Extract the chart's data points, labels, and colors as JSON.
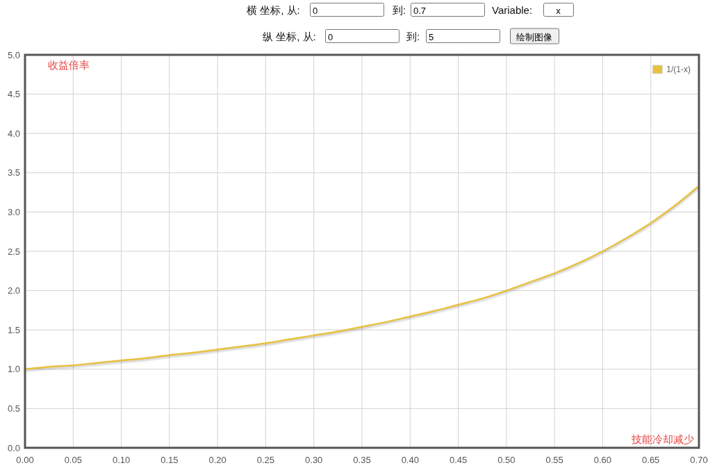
{
  "chart_data": {
    "type": "line",
    "xlabel": "技能冷却减少",
    "ylabel": "收益倍率",
    "annotations": [
      "横 坐标, 从:",
      "0",
      "到:",
      "0.7",
      "Variable:",
      "x",
      "纵 坐标, 从:",
      "0",
      "到:",
      "5",
      "绘制图像"
    ],
    "x": [
      0,
      0.025,
      0.05,
      0.075,
      0.1,
      0.125,
      0.15,
      0.175,
      0.2,
      0.225,
      0.25,
      0.275,
      0.3,
      0.325,
      0.35,
      0.375,
      0.4,
      0.425,
      0.45,
      0.475,
      0.5,
      0.525,
      0.55,
      0.575,
      0.6,
      0.625,
      0.65,
      0.675,
      0.7
    ],
    "series": [
      {
        "name": "1/(1-x)",
        "color": "#e8c13d",
        "values": [
          1.0,
          1.03,
          1.05,
          1.08,
          1.11,
          1.14,
          1.18,
          1.21,
          1.25,
          1.29,
          1.33,
          1.38,
          1.43,
          1.48,
          1.54,
          1.6,
          1.67,
          1.74,
          1.82,
          1.9,
          2.0,
          2.11,
          2.22,
          2.35,
          2.5,
          2.67,
          2.86,
          3.08,
          3.33
        ]
      }
    ],
    "xlim": [
      0,
      0.7
    ],
    "ylim": [
      0,
      5
    ],
    "xticks": [
      {
        "value": 0,
        "label": "0.00"
      },
      {
        "value": 0.05,
        "label": "0.05"
      },
      {
        "value": 0.1,
        "label": "0.10"
      },
      {
        "value": 0.15,
        "label": "0.15"
      },
      {
        "value": 0.2,
        "label": "0.20"
      },
      {
        "value": 0.25,
        "label": "0.25"
      },
      {
        "value": 0.3,
        "label": "0.30"
      },
      {
        "value": 0.35,
        "label": "0.35"
      },
      {
        "value": 0.4,
        "label": "0.40"
      },
      {
        "value": 0.45,
        "label": "0.45"
      },
      {
        "value": 0.5,
        "label": "0.50"
      },
      {
        "value": 0.55,
        "label": "0.55"
      },
      {
        "value": 0.6,
        "label": "0.60"
      },
      {
        "value": 0.65,
        "label": "0.65"
      },
      {
        "value": 0.7,
        "label": "0.70"
      }
    ],
    "yticks": [
      {
        "value": 0,
        "label": "0.0"
      },
      {
        "value": 0.5,
        "label": "0.5"
      },
      {
        "value": 1,
        "label": "1.0"
      },
      {
        "value": 1.5,
        "label": "1.5"
      },
      {
        "value": 2,
        "label": "2.0"
      },
      {
        "value": 2.5,
        "label": "2.5"
      },
      {
        "value": 3,
        "label": "3.0"
      },
      {
        "value": 3.5,
        "label": "3.5"
      },
      {
        "value": 4,
        "label": "4.0"
      },
      {
        "value": 4.5,
        "label": "4.5"
      },
      {
        "value": 5,
        "label": "5.0"
      }
    ],
    "grid": true,
    "legend": "top right"
  }
}
